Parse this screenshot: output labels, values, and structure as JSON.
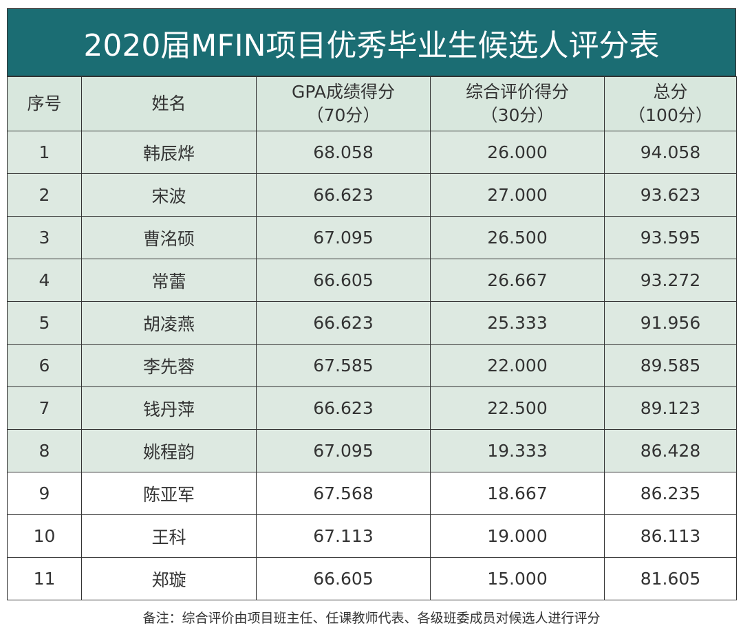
{
  "title": "2020届MFIN项目优秀毕业生候选人评分表",
  "table": {
    "header": [
      [
        "序号"
      ],
      [
        "姓名"
      ],
      [
        "GPA成绩得分",
        "（70分）"
      ],
      [
        "综合评价得分",
        "（30分）"
      ],
      [
        "总分",
        "（100分）"
      ]
    ],
    "rows": [
      [
        "1",
        "韩辰烨",
        "68.058",
        "26.000",
        "94.058"
      ],
      [
        "2",
        "宋波",
        "66.623",
        "27.000",
        "93.623"
      ],
      [
        "3",
        "曹洺硕",
        "67.095",
        "26.500",
        "93.595"
      ],
      [
        "4",
        "常蕾",
        "66.605",
        "26.667",
        "93.272"
      ],
      [
        "5",
        "胡凌燕",
        "66.623",
        "25.333",
        "91.956"
      ],
      [
        "6",
        "李先蓉",
        "67.585",
        "22.000",
        "89.585"
      ],
      [
        "7",
        "钱丹萍",
        "66.623",
        "22.500",
        "89.123"
      ],
      [
        "8",
        "姚程韵",
        "67.095",
        "19.333",
        "86.428"
      ],
      [
        "9",
        "陈亚军",
        "67.568",
        "18.667",
        "86.235"
      ],
      [
        "10",
        "王科",
        "67.113",
        "19.000",
        "86.113"
      ],
      [
        "11",
        "郑璇",
        "66.605",
        "15.000",
        "81.605"
      ]
    ]
  },
  "note": "备注：综合评价由项目班主任、任课教师代表、各级班委成员对候选人进行评分"
}
